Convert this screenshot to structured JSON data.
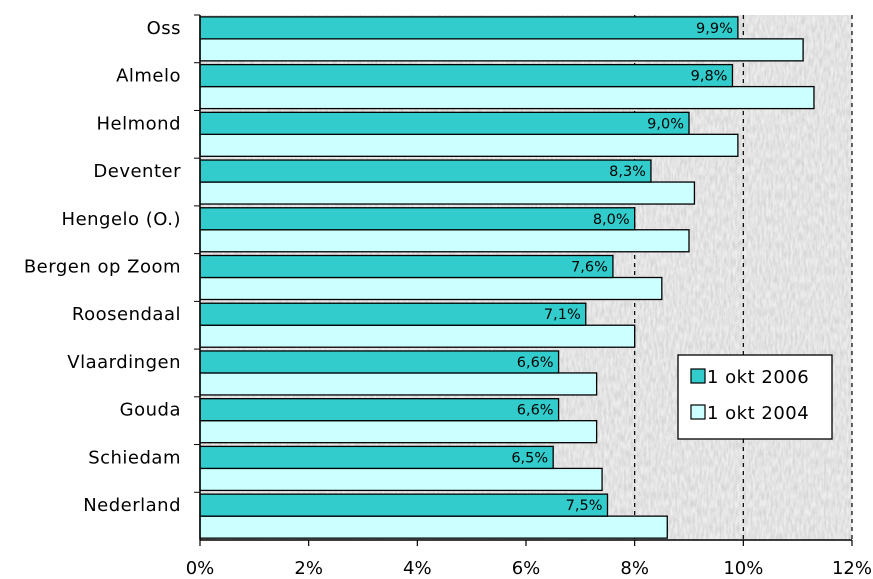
{
  "chart_data": {
    "type": "bar",
    "orientation": "horizontal",
    "categories": [
      "Oss",
      "Almelo",
      "Helmond",
      "Deventer",
      "Hengelo (O.)",
      "Bergen op Zoom",
      "Roosendaal",
      "Vlaardingen",
      "Gouda",
      "Schiedam",
      "Nederland"
    ],
    "series": [
      {
        "name": "1 okt 2006",
        "color": "#33cccc",
        "values": [
          9.9,
          9.8,
          9.0,
          8.3,
          8.0,
          7.6,
          7.1,
          6.6,
          6.6,
          6.5,
          7.5
        ],
        "labels": [
          "9,9%",
          "9,8%",
          "9,0%",
          "8,3%",
          "8,0%",
          "7,6%",
          "7,1%",
          "6,6%",
          "6,6%",
          "6,5%",
          "7,5%"
        ]
      },
      {
        "name": "1 okt 2004",
        "color": "#ccffff",
        "values": [
          11.1,
          11.3,
          9.9,
          9.1,
          9.0,
          8.5,
          8.0,
          7.3,
          7.3,
          7.4,
          8.6
        ]
      }
    ],
    "xlim": [
      0,
      12
    ],
    "x_ticks": [
      0,
      2,
      4,
      6,
      8,
      10,
      12
    ],
    "x_tick_labels": [
      "0%",
      "2%",
      "4%",
      "6%",
      "8%",
      "10%",
      "12%"
    ],
    "gridlines": [
      8,
      10,
      12
    ],
    "grid_style": "dashed",
    "legend_position": "right",
    "xlabel": "",
    "ylabel": "",
    "title": ""
  }
}
